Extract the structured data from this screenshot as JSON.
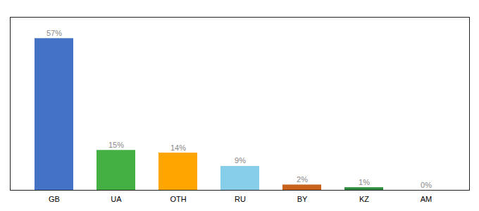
{
  "chart_data": {
    "type": "bar",
    "categories": [
      "GB",
      "UA",
      "OTH",
      "RU",
      "BY",
      "KZ",
      "AM"
    ],
    "values": [
      57,
      15,
      14,
      9,
      2,
      1,
      0
    ],
    "value_labels": [
      "57%",
      "15%",
      "14%",
      "9%",
      "2%",
      "1%",
      "0%"
    ],
    "colors": [
      "#4472c4",
      "#44b044",
      "#ffa500",
      "#87ceeb",
      "#c8611a",
      "#2d8a3e",
      "#bbbbbb"
    ],
    "ylim": [
      0,
      65
    ],
    "data_labels": true,
    "tick_labels": "x",
    "grid": false
  }
}
